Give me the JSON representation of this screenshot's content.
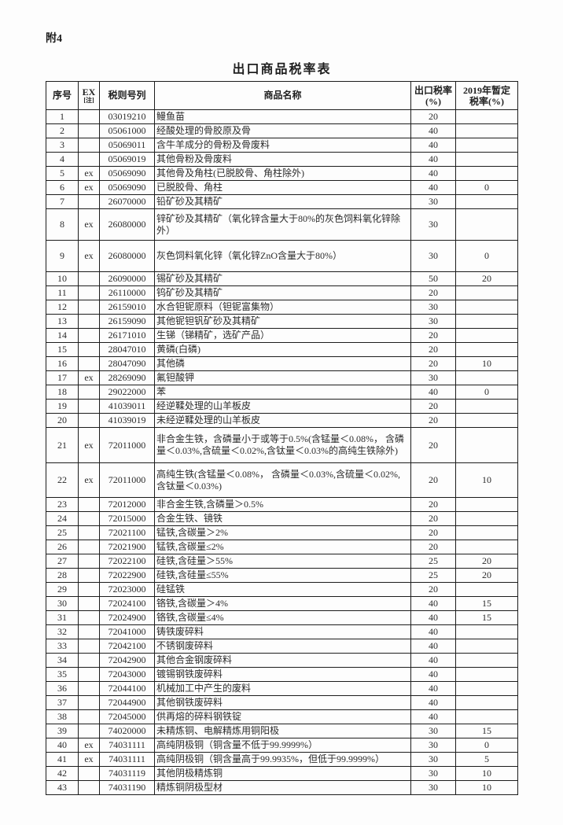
{
  "page": {
    "attachment_label": "附4",
    "title": "出口商品税率表"
  },
  "table": {
    "headers": {
      "index": "序号",
      "ex": "EX",
      "ex_note": "[注]",
      "code": "税则号列",
      "name": "商品名称",
      "export_rate_line1": "出口税率",
      "export_rate_line2": "(%)",
      "provisional_line1": "2019年暂定",
      "provisional_line2": "税率(%)"
    },
    "rows": [
      {
        "no": "1",
        "ex": "",
        "code": "03019210",
        "name": "鳗鱼苗",
        "export_rate": "20",
        "provisional_rate": ""
      },
      {
        "no": "2",
        "ex": "",
        "code": "05061000",
        "name": "经酸处理的骨胶原及骨",
        "export_rate": "40",
        "provisional_rate": ""
      },
      {
        "no": "3",
        "ex": "",
        "code": "05069011",
        "name": "含牛羊成分的骨粉及骨废料",
        "export_rate": "40",
        "provisional_rate": ""
      },
      {
        "no": "4",
        "ex": "",
        "code": "05069019",
        "name": "其他骨粉及骨废料",
        "export_rate": "40",
        "provisional_rate": ""
      },
      {
        "no": "5",
        "ex": "ex",
        "code": "05069090",
        "name": "其他骨及角柱(已脱胶骨、角柱除外)",
        "export_rate": "40",
        "provisional_rate": ""
      },
      {
        "no": "6",
        "ex": "ex",
        "code": "05069090",
        "name": "已脱胶骨、角柱",
        "export_rate": "40",
        "provisional_rate": "0"
      },
      {
        "no": "7",
        "ex": "",
        "code": "26070000",
        "name": "铅矿砂及其精矿",
        "export_rate": "30",
        "provisional_rate": ""
      },
      {
        "no": "8",
        "ex": "ex",
        "code": "26080000",
        "name": "锌矿砂及其精矿（氧化锌含量大于80%的灰色饲料氧化锌除外）",
        "export_rate": "30",
        "provisional_rate": ""
      },
      {
        "no": "9",
        "ex": "ex",
        "code": "26080000",
        "name": "灰色饲料氧化锌（氧化锌ZnO含量大于80%）",
        "export_rate": "30",
        "provisional_rate": "0"
      },
      {
        "no": "10",
        "ex": "",
        "code": "26090000",
        "name": "锡矿砂及其精矿",
        "export_rate": "50",
        "provisional_rate": "20"
      },
      {
        "no": "11",
        "ex": "",
        "code": "26110000",
        "name": "钨矿砂及其精矿",
        "export_rate": "20",
        "provisional_rate": ""
      },
      {
        "no": "12",
        "ex": "",
        "code": "26159010",
        "name": "水合钽铌原料（钽铌富集物）",
        "export_rate": "30",
        "provisional_rate": ""
      },
      {
        "no": "13",
        "ex": "",
        "code": "26159090",
        "name": "其他铌钽钒矿砂及其精矿",
        "export_rate": "30",
        "provisional_rate": ""
      },
      {
        "no": "14",
        "ex": "",
        "code": "26171010",
        "name": "生锑（锑精矿，选矿产品）",
        "export_rate": "20",
        "provisional_rate": ""
      },
      {
        "no": "15",
        "ex": "",
        "code": "28047010",
        "name": "黄磷(白磷)",
        "export_rate": "20",
        "provisional_rate": ""
      },
      {
        "no": "16",
        "ex": "",
        "code": "28047090",
        "name": "其他磷",
        "export_rate": "20",
        "provisional_rate": "10"
      },
      {
        "no": "17",
        "ex": "ex",
        "code": "28269090",
        "name": "氟钽酸钾",
        "export_rate": "30",
        "provisional_rate": ""
      },
      {
        "no": "18",
        "ex": "",
        "code": "29022000",
        "name": "苯",
        "export_rate": "40",
        "provisional_rate": "0"
      },
      {
        "no": "19",
        "ex": "",
        "code": "41039011",
        "name": "经逆鞣处理的山羊板皮",
        "export_rate": "20",
        "provisional_rate": ""
      },
      {
        "no": "20",
        "ex": "",
        "code": "41039019",
        "name": "未经逆鞣处理的山羊板皮",
        "export_rate": "20",
        "provisional_rate": ""
      },
      {
        "no": "21",
        "ex": "ex",
        "code": "72011000",
        "name": "非合金生铁，含磷量小于或等于0.5%(含锰量＜0.08%， 含磷量＜0.03%,含硫量＜0.02%,含钛量＜0.03%的高纯生铁除外)",
        "export_rate": "20",
        "provisional_rate": ""
      },
      {
        "no": "22",
        "ex": "ex",
        "code": "72011000",
        "name": "高纯生铁(含锰量＜0.08%， 含磷量＜0.03%,含硫量＜0.02%, 含钛量＜0.03%)",
        "export_rate": "20",
        "provisional_rate": "10"
      },
      {
        "no": "23",
        "ex": "",
        "code": "72012000",
        "name": "非合金生铁,含磷量＞0.5%",
        "export_rate": "20",
        "provisional_rate": ""
      },
      {
        "no": "24",
        "ex": "",
        "code": "72015000",
        "name": "合金生铁、镜铁",
        "export_rate": "20",
        "provisional_rate": ""
      },
      {
        "no": "25",
        "ex": "",
        "code": "72021100",
        "name": "锰铁,含碳量＞2%",
        "export_rate": "20",
        "provisional_rate": ""
      },
      {
        "no": "26",
        "ex": "",
        "code": "72021900",
        "name": "锰铁,含碳量≤2%",
        "export_rate": "20",
        "provisional_rate": ""
      },
      {
        "no": "27",
        "ex": "",
        "code": "72022100",
        "name": "硅铁,含硅量＞55%",
        "export_rate": "25",
        "provisional_rate": "20"
      },
      {
        "no": "28",
        "ex": "",
        "code": "72022900",
        "name": "硅铁,含硅量≤55%",
        "export_rate": "25",
        "provisional_rate": "20"
      },
      {
        "no": "29",
        "ex": "",
        "code": "72023000",
        "name": "硅锰铁",
        "export_rate": "20",
        "provisional_rate": ""
      },
      {
        "no": "30",
        "ex": "",
        "code": "72024100",
        "name": "铬铁,含碳量＞4%",
        "export_rate": "40",
        "provisional_rate": "15"
      },
      {
        "no": "31",
        "ex": "",
        "code": "72024900",
        "name": "铬铁,含碳量≤4%",
        "export_rate": "40",
        "provisional_rate": "15"
      },
      {
        "no": "32",
        "ex": "",
        "code": "72041000",
        "name": "铸铁废碎料",
        "export_rate": "40",
        "provisional_rate": ""
      },
      {
        "no": "33",
        "ex": "",
        "code": "72042100",
        "name": "不锈钢废碎料",
        "export_rate": "40",
        "provisional_rate": ""
      },
      {
        "no": "34",
        "ex": "",
        "code": "72042900",
        "name": "其他合金钢废碎料",
        "export_rate": "40",
        "provisional_rate": ""
      },
      {
        "no": "35",
        "ex": "",
        "code": "72043000",
        "name": "镀锡钢铁废碎料",
        "export_rate": "40",
        "provisional_rate": ""
      },
      {
        "no": "36",
        "ex": "",
        "code": "72044100",
        "name": "机械加工中产生的废料",
        "export_rate": "40",
        "provisional_rate": ""
      },
      {
        "no": "37",
        "ex": "",
        "code": "72044900",
        "name": "其他钢铁废碎料",
        "export_rate": "40",
        "provisional_rate": ""
      },
      {
        "no": "38",
        "ex": "",
        "code": "72045000",
        "name": "供再熔的碎料钢铁锭",
        "export_rate": "40",
        "provisional_rate": ""
      },
      {
        "no": "39",
        "ex": "",
        "code": "74020000",
        "name": "未精炼铜、电解精炼用铜阳极",
        "export_rate": "30",
        "provisional_rate": "15"
      },
      {
        "no": "40",
        "ex": "ex",
        "code": "74031111",
        "name": "高纯阴极铜（铜含量不低于99.9999%）",
        "export_rate": "30",
        "provisional_rate": "0"
      },
      {
        "no": "41",
        "ex": "ex",
        "code": "74031111",
        "name": "高纯阴极铜（铜含量高于99.9935%，但低于99.9999%）",
        "export_rate": "30",
        "provisional_rate": "5"
      },
      {
        "no": "42",
        "ex": "",
        "code": "74031119",
        "name": "其他阴极精炼铜",
        "export_rate": "30",
        "provisional_rate": "10"
      },
      {
        "no": "43",
        "ex": "",
        "code": "74031190",
        "name": "精炼铜阴极型材",
        "export_rate": "30",
        "provisional_rate": "10"
      }
    ]
  }
}
